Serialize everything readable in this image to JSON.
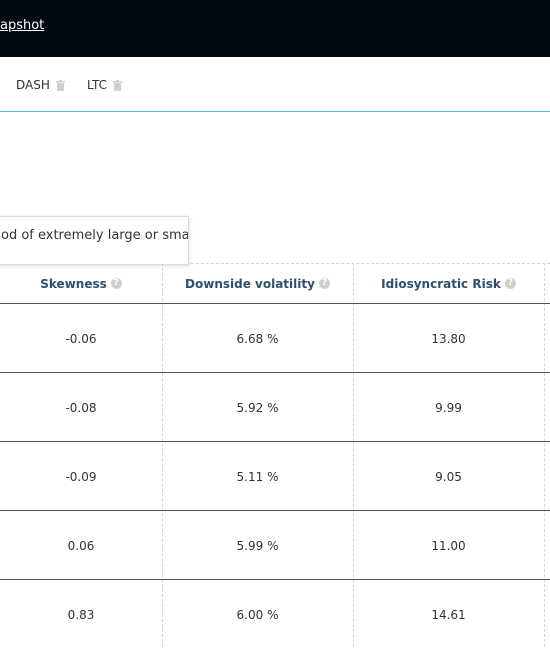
{
  "header": {
    "link_text": "apshot"
  },
  "tabs": [
    {
      "label": "DASH",
      "icon": "trash-icon"
    },
    {
      "label": "LTC",
      "icon": "trash-icon"
    }
  ],
  "tooltip": {
    "text": "od of extremely large or small"
  },
  "table": {
    "columns": [
      {
        "label": "Skewness",
        "icon": "help-icon"
      },
      {
        "label": "Downside volatility",
        "icon": "help-icon"
      },
      {
        "label": "Idiosyncratic Risk",
        "icon": "help-icon"
      }
    ],
    "rows": [
      [
        "-0.06",
        "6.68 %",
        "13.80"
      ],
      [
        "-0.08",
        "5.92 %",
        "9.99"
      ],
      [
        "-0.09",
        "5.11 %",
        "9.05"
      ],
      [
        "0.06",
        "5.99 %",
        "11.00"
      ],
      [
        "0.83",
        "6.00 %",
        "14.61"
      ]
    ]
  },
  "colors": {
    "topbar": "#020a12",
    "tab_underline": "#5db3d6",
    "header_text": "#2f4f6f"
  }
}
